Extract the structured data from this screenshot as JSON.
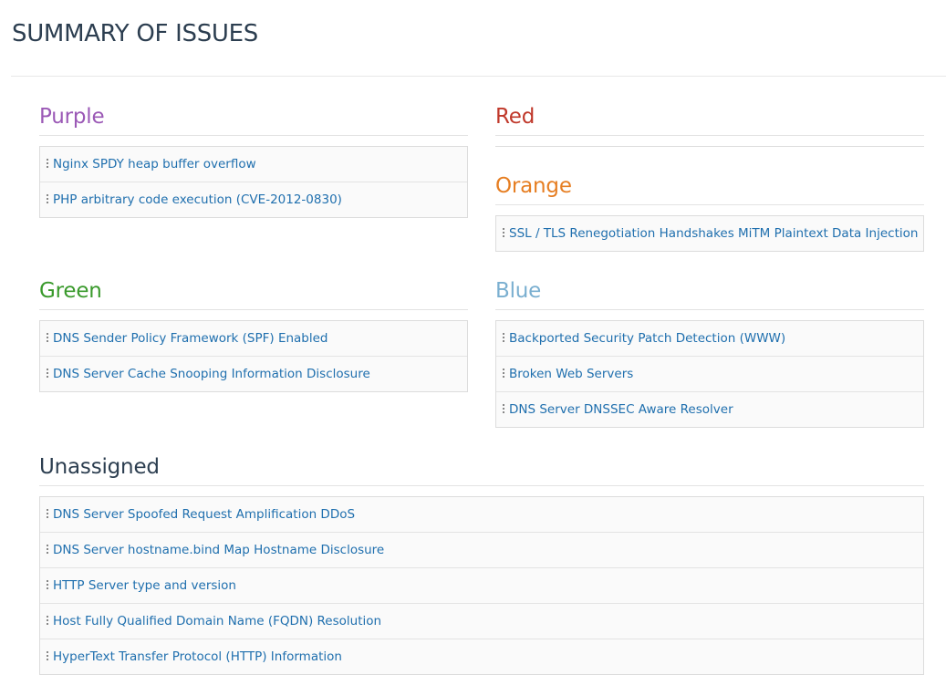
{
  "header": {
    "title": "SUMMARY OF ISSUES"
  },
  "sections": [
    {
      "heading": "Purple",
      "items": [
        "Nginx SPDY heap buffer overflow",
        "PHP arbitrary code execution (CVE-2012-0830)"
      ]
    },
    {
      "heading": "Red",
      "items": []
    },
    {
      "heading": "Orange",
      "items": [
        "SSL / TLS Renegotiation Handshakes MiTM Plaintext Data Injection"
      ]
    },
    {
      "heading": "Green",
      "items": [
        "DNS Sender Policy Framework (SPF) Enabled",
        "DNS Server Cache Snooping Information Disclosure"
      ]
    },
    {
      "heading": "Blue",
      "items": [
        "Backported Security Patch Detection (WWW)",
        "Broken Web Servers",
        "DNS Server DNSSEC Aware Resolver"
      ]
    },
    {
      "heading": "Unassigned",
      "items": [
        "DNS Server Spoofed Request Amplification DDoS",
        "DNS Server hostname.bind Map Hostname Disclosure",
        "HTTP Server type and version",
        "Host Fully Qualified Domain Name (FQDN) Resolution",
        "HyperText Transfer Protocol (HTTP) Information"
      ]
    }
  ]
}
